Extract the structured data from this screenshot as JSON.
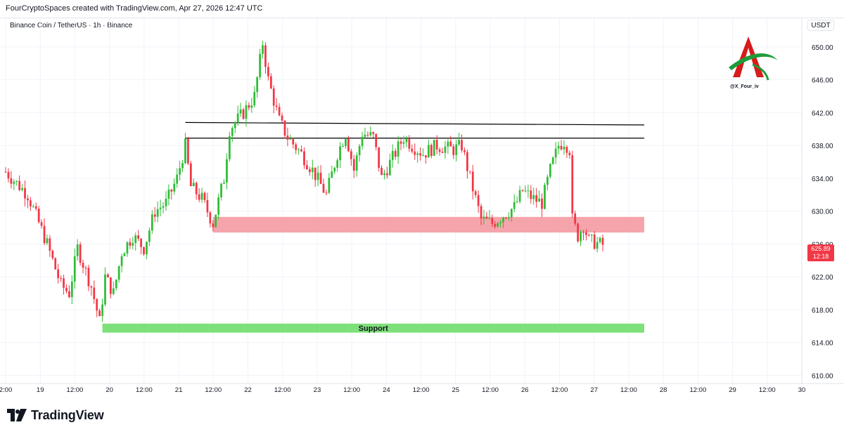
{
  "header": {
    "attribution": "FourCryptoSpaces created with TradingView.com, Apr 27, 2026 12:47 UTC"
  },
  "symbol_info": "Binance Coin / TetherUS · 1h · Binance",
  "watermark": {
    "handle": "@X_Four_iv"
  },
  "price_axis": {
    "unit": "USDT"
  },
  "last_price": {
    "value": "625.89",
    "countdown": "12:18"
  },
  "footer": {
    "brand": "TradingView"
  },
  "colors": {
    "up": "#089981",
    "up_green": "#2ebd35",
    "down": "#f23645",
    "support_zone": "#7ee07a",
    "resistance_zone": "#f6a4ab",
    "levels": "#000000",
    "grid": "#f0f3fa"
  },
  "chart_data": {
    "type": "candlestick",
    "title": "Binance Coin / TetherUS · 1h · Binance",
    "y_unit": "USDT",
    "ylim": [
      609,
      653.5
    ],
    "y_ticks": [
      610,
      614,
      618,
      622,
      626,
      630,
      634,
      638,
      642,
      646,
      650
    ],
    "y_tick_labels": [
      "610.00",
      "614.00",
      "618.00",
      "622.00",
      "626.00",
      "630.00",
      "634.00",
      "638.00",
      "642.00",
      "646.00",
      "650.00"
    ],
    "x_tick_labels": [
      "2:00",
      "19",
      "12:00",
      "20",
      "12:00",
      "21",
      "12:00",
      "22",
      "12:00",
      "23",
      "12:00",
      "24",
      "12:00",
      "25",
      "12:00",
      "26",
      "12:00",
      "27",
      "12:00",
      "28",
      "12:00",
      "29",
      "12:00",
      "30"
    ],
    "x_start": "Apr 18 12:00",
    "x_end": "Apr 30 12:00",
    "grid": true,
    "annotations": [
      {
        "type": "zone",
        "label": "Support",
        "from": "Apr 19 23:00",
        "to": "Apr 28 03:00",
        "low": 615.2,
        "high": 616.3
      },
      {
        "type": "zone",
        "label": "",
        "from": "Apr 21 15:00",
        "to": "Apr 28 03:00",
        "low": 627.4,
        "high": 629.3
      },
      {
        "type": "line",
        "from": "Apr 21 05:00",
        "to": "Apr 28 03:00",
        "start_price": 640.8,
        "end_price": 640.5
      },
      {
        "type": "line",
        "from": "Apr 21 05:00",
        "to": "Apr 28 03:00",
        "start_price": 638.9,
        "end_price": 638.9
      }
    ],
    "close_path": [
      [
        "Apr 18 12:00",
        634.8
      ],
      [
        "Apr 18 20:00",
        632.0
      ],
      [
        "Apr 19 03:00",
        626.0
      ],
      [
        "Apr 19 08:00",
        621.0
      ],
      [
        "Apr 19 11:00",
        620.0
      ],
      [
        "Apr 19 14:00",
        625.5
      ],
      [
        "Apr 19 19:00",
        620.8
      ],
      [
        "Apr 19 22:00",
        616.5
      ],
      [
        "Apr 20 00:00",
        622.0
      ],
      [
        "Apr 20 03:00",
        620.0
      ],
      [
        "Apr 20 06:00",
        625.0
      ],
      [
        "Apr 20 10:00",
        627.0
      ],
      [
        "Apr 20 14:00",
        625.5
      ],
      [
        "Apr 20 18:00",
        630.0
      ],
      [
        "Apr 20 22:00",
        631.0
      ],
      [
        "Apr 21 02:00",
        634.0
      ],
      [
        "Apr 21 05:00",
        638.0
      ],
      [
        "Apr 21 07:00",
        633.0
      ],
      [
        "Apr 21 11:00",
        631.5
      ],
      [
        "Apr 21 15:00",
        628.5
      ],
      [
        "Apr 21 19:00",
        634.0
      ],
      [
        "Apr 21 21:00",
        640.0
      ],
      [
        "Apr 22 02:00",
        642.0
      ],
      [
        "Apr 22 06:00",
        644.0
      ],
      [
        "Apr 22 09:00",
        650.5
      ],
      [
        "Apr 22 11:00",
        646.0
      ],
      [
        "Apr 22 15:00",
        641.0
      ],
      [
        "Apr 22 18:00",
        639.0
      ],
      [
        "Apr 22 23:00",
        637.0
      ],
      [
        "Apr 23 03:00",
        635.0
      ],
      [
        "Apr 23 08:00",
        632.0
      ],
      [
        "Apr 23 12:00",
        637.0
      ],
      [
        "Apr 23 15:00",
        639.5
      ],
      [
        "Apr 23 18:00",
        635.0
      ],
      [
        "Apr 23 21:00",
        639.5
      ],
      [
        "Apr 24 01:00",
        639.0
      ],
      [
        "Apr 24 04:00",
        634.0
      ],
      [
        "Apr 24 08:00",
        636.5
      ],
      [
        "Apr 24 12:00",
        639.0
      ],
      [
        "Apr 24 15:00",
        638.0
      ],
      [
        "Apr 24 19:00",
        637.0
      ],
      [
        "Apr 25 00:00",
        638.0
      ],
      [
        "Apr 25 06:00",
        637.5
      ],
      [
        "Apr 25 09:00",
        638.0
      ],
      [
        "Apr 25 12:00",
        634.0
      ],
      [
        "Apr 25 16:00",
        629.0
      ],
      [
        "Apr 25 20:00",
        628.5
      ],
      [
        "Apr 26 00:00",
        629.5
      ],
      [
        "Apr 26 04:00",
        630.5
      ],
      [
        "Apr 26 07:00",
        632.5
      ],
      [
        "Apr 26 11:00",
        631.5
      ],
      [
        "Apr 26 14:00",
        631.0
      ],
      [
        "Apr 26 17:00",
        635.0
      ],
      [
        "Apr 26 20:00",
        638.0
      ],
      [
        "Apr 26 22:00",
        638.5
      ],
      [
        "Apr 27 00:00",
        637.5
      ],
      [
        "Apr 27 01:00",
        629.0
      ],
      [
        "Apr 27 03:00",
        627.0
      ],
      [
        "Apr 27 05:00",
        628.3
      ],
      [
        "Apr 27 07:00",
        626.4
      ],
      [
        "Apr 27 12:00",
        625.89
      ]
    ]
  }
}
